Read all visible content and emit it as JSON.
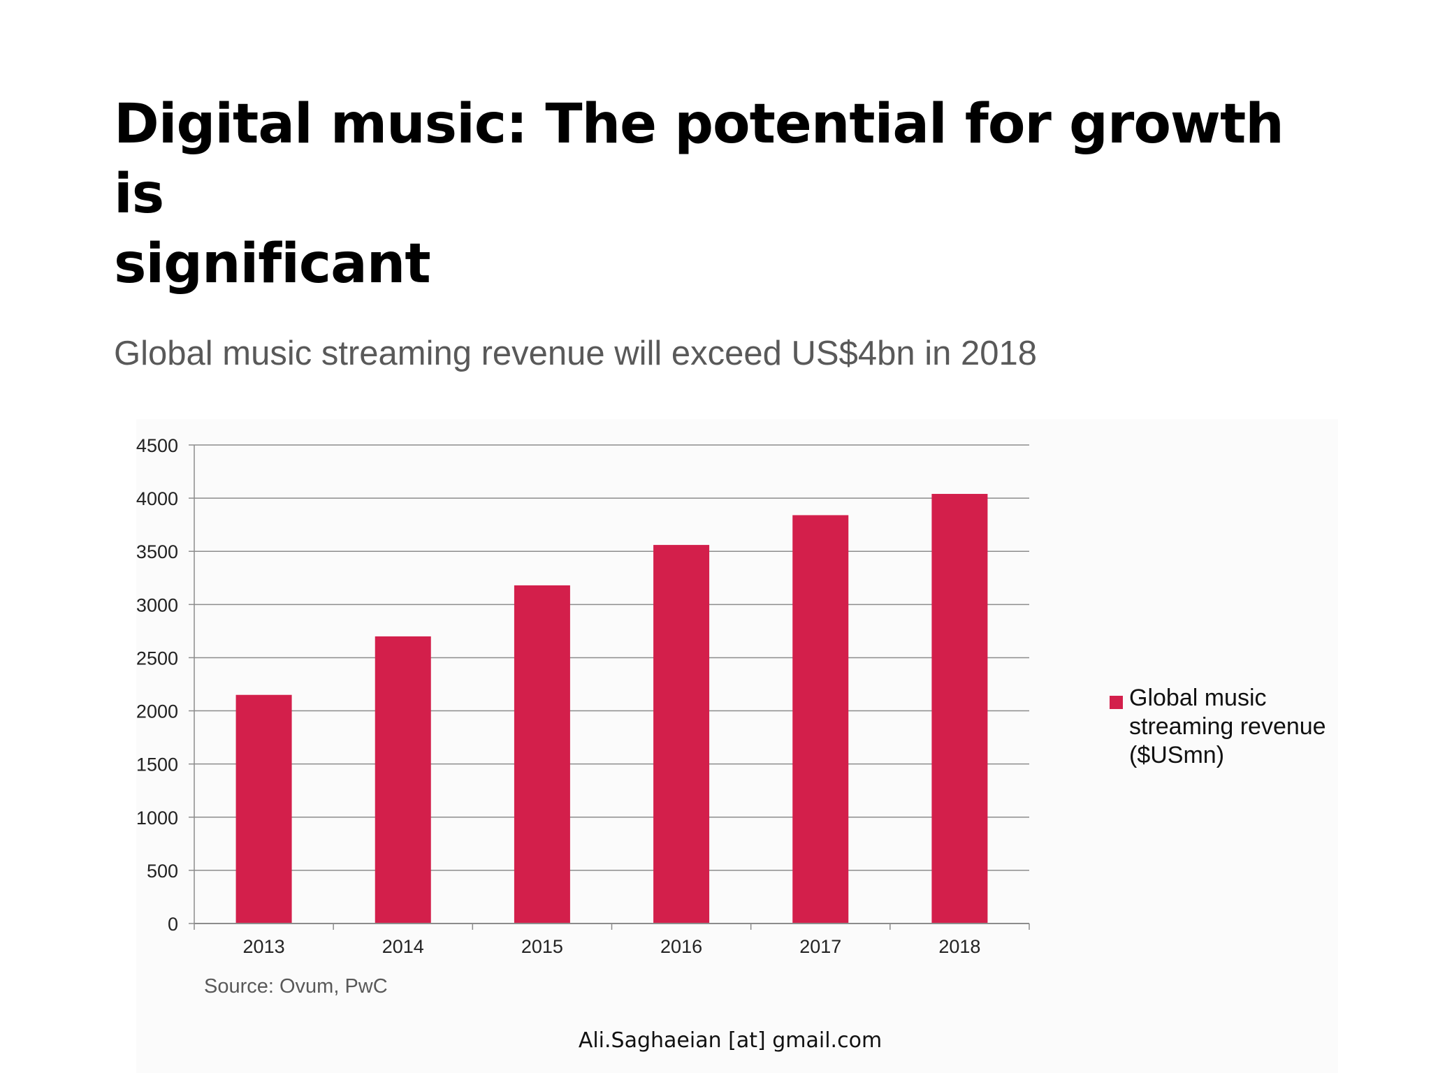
{
  "slide": {
    "title": "Digital music: The potential for growth is\nsignificant",
    "footer": "Ali.Saghaeian [at] gmail.com"
  },
  "chart_data": {
    "type": "bar",
    "title": "Global music streaming revenue will exceed US$4bn in 2018",
    "categories": [
      "2013",
      "2014",
      "2015",
      "2016",
      "2017",
      "2018"
    ],
    "series": [
      {
        "name": "Global music streaming revenue ($USmn)",
        "name_lines": [
          "Global music",
          "streaming revenue",
          "($USmn)"
        ],
        "values": [
          2150,
          2700,
          3180,
          3560,
          3840,
          4040
        ],
        "color": "#d31f4b"
      }
    ],
    "yticks": [
      "0",
      "500",
      "1000",
      "1500",
      "2000",
      "2500",
      "3000",
      "3500",
      "4000",
      "4500"
    ],
    "ylim": [
      0,
      4500
    ],
    "grid": true,
    "legend": "right",
    "source": "Source: Ovum, PwC"
  }
}
